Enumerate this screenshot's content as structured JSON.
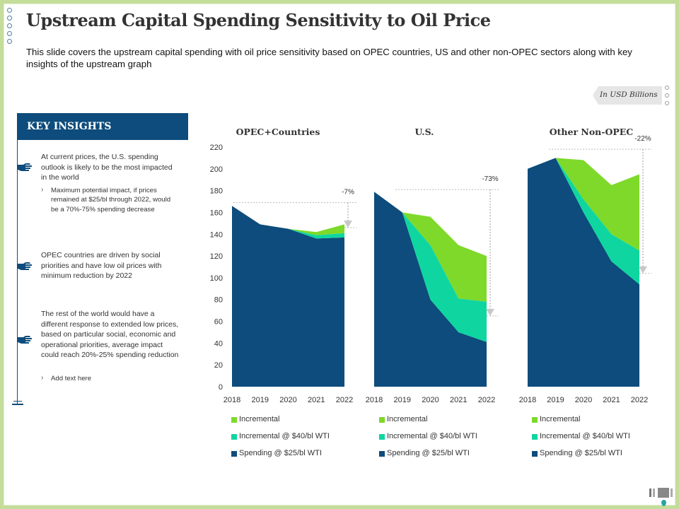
{
  "title": "Upstream Capital Spending Sensitivity to Oil Price",
  "subtitle": "This slide covers the upstream capital spending with oil price sensitivity based on OPEC countries, US and other non-OPEC sectors along with key insights of the upstream graph",
  "unit_label": "In USD Billions",
  "key_insights": {
    "header": "KEY INSIGHTS",
    "items": [
      {
        "text": "At current prices, the U.S. spending outlook is likely to be the most impacted in the world",
        "sub": "Maximum potential impact, if prices remained at $25/bl through 2022, would be a 70%-75% spending decrease"
      },
      {
        "text": "OPEC countries are driven by social priorities and have low oil prices with minimum reduction by 2022",
        "sub": ""
      },
      {
        "text": "The rest of the world would have a different response to extended low prices, based on particular social, economic and operational priorities, average impact could reach 20%-25% spending reduction",
        "sub": "Add text here"
      }
    ]
  },
  "colors": {
    "spending": "#0d4c7c",
    "incremental40": "#0fd6a0",
    "incremental": "#7ed92a",
    "header": "#0d4c7c"
  },
  "chart_data": {
    "type": "area",
    "stacked": true,
    "y_axis": {
      "min": 0,
      "max": 220,
      "step": 20,
      "ticks": [
        "0",
        "20",
        "40",
        "60",
        "80",
        "100",
        "120",
        "140",
        "160",
        "180",
        "200",
        "220"
      ]
    },
    "series_names": [
      "Spending @ $25/bl WTI",
      "Incremental @ $40/bl WTI",
      "Incremental"
    ],
    "legend_labels": [
      "Incremental",
      "Incremental @ $40/bl WTI",
      "Spending @ $25/bl WTI"
    ],
    "panels": [
      {
        "title": "OPEC+Countries",
        "categories": [
          "2018",
          "2019",
          "2020",
          "2021",
          "2022"
        ],
        "series": [
          {
            "name": "Spending @ $25/bl WTI",
            "values": [
              166,
              149,
              145,
              136,
              137
            ]
          },
          {
            "name": "Incremental @ $40/bl WTI",
            "values": [
              0,
              0,
              0,
              3,
              4
            ]
          },
          {
            "name": "Incremental",
            "values": [
              0,
              0,
              0,
              3,
              8
            ]
          }
        ],
        "annotation": {
          "label": "-7%",
          "from": 169,
          "to": 146
        }
      },
      {
        "title": "U.S.",
        "categories": [
          "2018",
          "2019",
          "2020",
          "2021",
          "2022"
        ],
        "series": [
          {
            "name": "Spending @ $25/bl WTI",
            "values": [
              179,
              160,
              80,
              50,
              41
            ]
          },
          {
            "name": "Incremental @ $40/bl WTI",
            "values": [
              0,
              0,
              50,
              31,
              37
            ]
          },
          {
            "name": "Incremental",
            "values": [
              0,
              0,
              26,
              49,
              42
            ]
          }
        ],
        "annotation": {
          "label": "-73%",
          "from": 181,
          "to": 65
        }
      },
      {
        "title": "Other Non-OPEC",
        "categories": [
          "2018",
          "2019",
          "2020",
          "2021",
          "2022"
        ],
        "series": [
          {
            "name": "Spending @ $25/bl WTI",
            "values": [
              200,
              210,
              160,
              115,
              94
            ]
          },
          {
            "name": "Incremental @ $40/bl WTI",
            "values": [
              0,
              0,
              12,
              25,
              31
            ]
          },
          {
            "name": "Incremental",
            "values": [
              0,
              0,
              36,
              45,
              70
            ]
          }
        ],
        "annotation": {
          "label": "-22%",
          "from": 218,
          "to": 104
        }
      }
    ]
  }
}
